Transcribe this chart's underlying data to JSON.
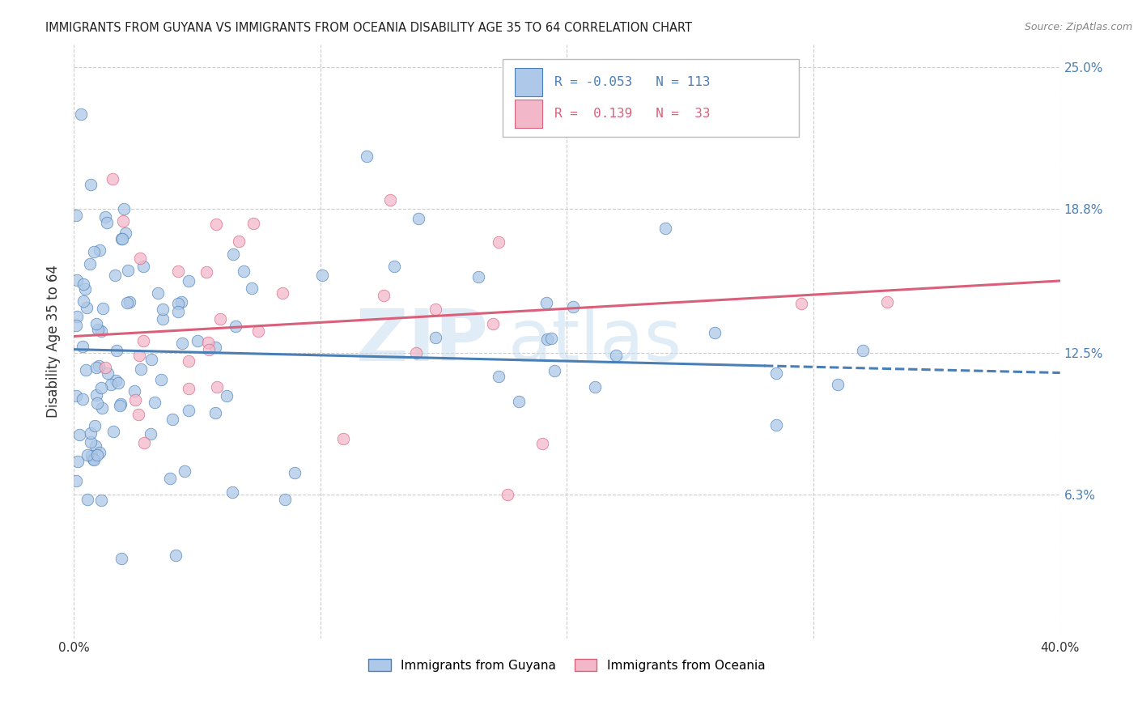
{
  "title": "IMMIGRANTS FROM GUYANA VS IMMIGRANTS FROM OCEANIA DISABILITY AGE 35 TO 64 CORRELATION CHART",
  "source": "Source: ZipAtlas.com",
  "ylabel": "Disability Age 35 to 64",
  "xlim": [
    0.0,
    0.4
  ],
  "ylim": [
    0.0,
    0.26
  ],
  "ytick_positions": [
    0.063,
    0.125,
    0.188,
    0.25
  ],
  "ytick_labels": [
    "6.3%",
    "12.5%",
    "18.8%",
    "25.0%"
  ],
  "guyana_R": -0.053,
  "guyana_N": 113,
  "oceania_R": 0.139,
  "oceania_N": 33,
  "guyana_color": "#adc8e8",
  "oceania_color": "#f2b8ca",
  "guyana_line_color": "#4a7fb5",
  "oceania_line_color": "#d9607a",
  "background_color": "#ffffff",
  "grid_color": "#cccccc",
  "watermark_zip": "ZIP",
  "watermark_atlas": "atlas",
  "legend_R_color": "#4a7fb5",
  "legend_N_color": "#4a7fb5"
}
